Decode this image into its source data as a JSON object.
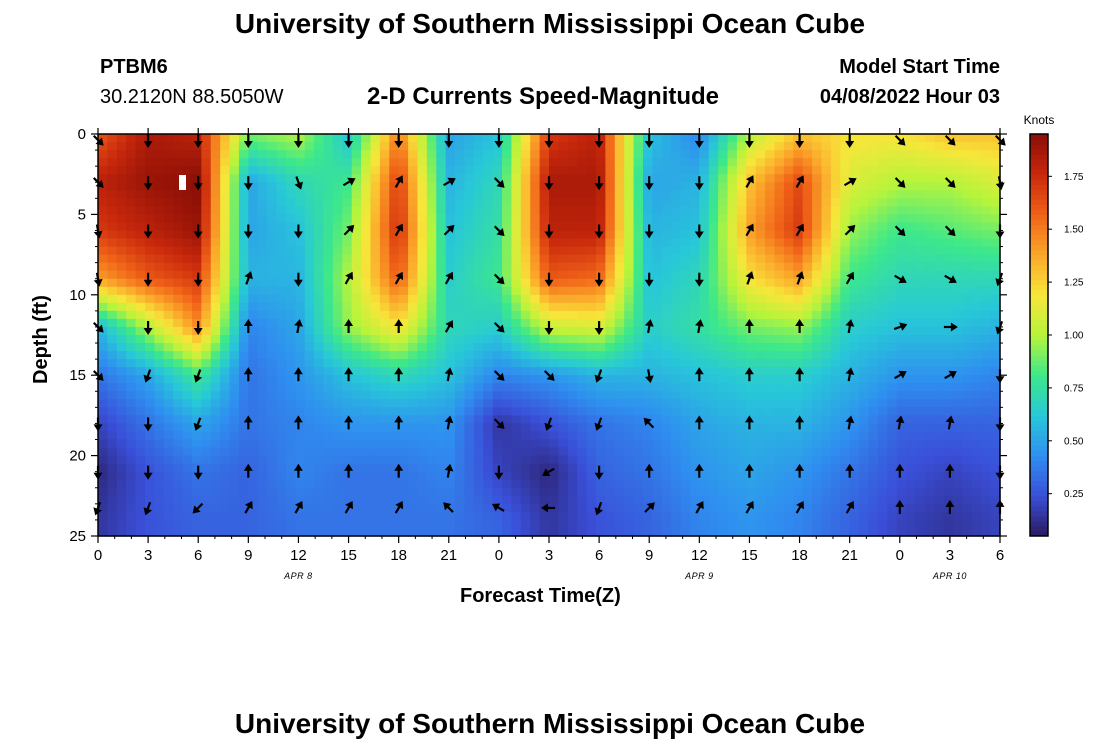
{
  "page": {
    "title_top": "University of Southern Mississippi Ocean Cube",
    "title_bottom": "University of Southern Mississippi Ocean Cube"
  },
  "header": {
    "station": "PTBM6",
    "coords": "30.2120N  88.5050W",
    "plot_title": "2-D Currents Speed-Magnitude",
    "model_label": "Model Start Time",
    "model_time": "04/08/2022 Hour 03"
  },
  "colors": {
    "scale": [
      "#2a1a5e",
      "#3a4fd8",
      "#2f8ff0",
      "#28c8d8",
      "#3de88a",
      "#b7f43b",
      "#f7e63a",
      "#fba72a",
      "#f06218",
      "#c8280c",
      "#8a0e06"
    ]
  },
  "chart_data": {
    "type": "heatmap",
    "title": "2-D Currents Speed-Magnitude",
    "xlabel": "Forecast Time(Z)",
    "ylabel": "Depth (ft)",
    "x_ticks": [
      "0",
      "3",
      "6",
      "9",
      "12",
      "15",
      "18",
      "21",
      "0",
      "3",
      "6",
      "9",
      "12",
      "15",
      "18",
      "21",
      "0",
      "3",
      "6"
    ],
    "x_range_hours": [
      0,
      54
    ],
    "y_ticks": [
      "0",
      "5",
      "10",
      "15",
      "20",
      "25"
    ],
    "y_range_ft": [
      0,
      25
    ],
    "date_labels": [
      {
        "label": "APR 8",
        "hour": 12
      },
      {
        "label": "APR 9",
        "hour": 36
      },
      {
        "label": "APR 10",
        "hour": 51
      }
    ],
    "colorbar": {
      "label": "Knots",
      "min": 0.05,
      "max": 1.95,
      "ticks": [
        "0.25",
        "0.50",
        "0.75",
        "1.00",
        "1.25",
        "1.50",
        "1.75"
      ],
      "tick_values": [
        0.25,
        0.5,
        0.75,
        1.0,
        1.25,
        1.5,
        1.75
      ]
    },
    "speed_knots": {
      "depths_ft": [
        0,
        3,
        6,
        9,
        12,
        15,
        18,
        21,
        24
      ],
      "hours": [
        0,
        3,
        6,
        9,
        12,
        15,
        18,
        21,
        24,
        27,
        30,
        33,
        36,
        39,
        42,
        45,
        48,
        51,
        54
      ],
      "rows": [
        [
          1.6,
          1.85,
          1.8,
          0.9,
          1.0,
          0.6,
          1.5,
          0.5,
          0.6,
          1.7,
          1.8,
          0.6,
          0.4,
          1.0,
          1.3,
          1.2,
          1.2,
          1.3,
          1.3
        ],
        [
          1.8,
          1.9,
          1.95,
          0.5,
          0.7,
          0.8,
          1.7,
          0.55,
          0.7,
          1.85,
          1.85,
          0.5,
          0.55,
          1.3,
          1.65,
          1.1,
          1.0,
          1.0,
          1.1
        ],
        [
          1.7,
          1.8,
          1.9,
          0.5,
          0.6,
          0.9,
          1.75,
          0.6,
          0.75,
          1.8,
          1.8,
          0.55,
          0.6,
          1.4,
          1.7,
          0.95,
          0.8,
          0.85,
          0.9
        ],
        [
          1.4,
          1.6,
          1.7,
          0.55,
          0.55,
          1.0,
          1.6,
          0.65,
          0.8,
          1.6,
          1.55,
          0.6,
          0.7,
          1.2,
          1.4,
          0.8,
          0.7,
          0.7,
          0.7
        ],
        [
          0.55,
          1.0,
          1.45,
          0.4,
          0.5,
          0.95,
          1.2,
          0.7,
          0.65,
          1.05,
          1.1,
          0.65,
          0.75,
          0.9,
          0.95,
          0.65,
          0.6,
          0.6,
          0.55
        ],
        [
          0.35,
          0.5,
          0.8,
          0.35,
          0.45,
          0.6,
          0.7,
          0.6,
          0.4,
          0.45,
          0.55,
          0.55,
          0.6,
          0.65,
          0.65,
          0.55,
          0.45,
          0.45,
          0.4
        ],
        [
          0.2,
          0.35,
          0.5,
          0.35,
          0.4,
          0.45,
          0.45,
          0.45,
          0.15,
          0.25,
          0.35,
          0.4,
          0.5,
          0.55,
          0.55,
          0.45,
          0.3,
          0.3,
          0.3
        ],
        [
          0.1,
          0.25,
          0.35,
          0.3,
          0.4,
          0.35,
          0.35,
          0.4,
          0.2,
          0.1,
          0.3,
          0.35,
          0.45,
          0.5,
          0.45,
          0.35,
          0.25,
          0.2,
          0.25
        ],
        [
          0.15,
          0.25,
          0.3,
          0.3,
          0.35,
          0.35,
          0.35,
          0.35,
          0.3,
          0.15,
          0.25,
          0.3,
          0.4,
          0.45,
          0.4,
          0.3,
          0.2,
          0.15,
          0.2
        ]
      ]
    },
    "current_direction_deg": {
      "note": "arrow bearing, degrees clockwise from north (0=up, 90=right)",
      "depths_ft": [
        0,
        3,
        6,
        9,
        12,
        15,
        18,
        21,
        24
      ],
      "hours": [
        0,
        3,
        6,
        9,
        12,
        15,
        18,
        21,
        24,
        27,
        30,
        33,
        36,
        39,
        42,
        45,
        48,
        51,
        54
      ],
      "rows": [
        [
          135,
          180,
          180,
          180,
          180,
          180,
          180,
          180,
          180,
          180,
          180,
          180,
          180,
          180,
          180,
          180,
          135,
          135,
          135
        ],
        [
          135,
          180,
          180,
          180,
          160,
          60,
          30,
          60,
          135,
          180,
          180,
          180,
          180,
          30,
          30,
          60,
          135,
          135,
          170
        ],
        [
          170,
          180,
          180,
          180,
          180,
          45,
          30,
          45,
          135,
          180,
          180,
          180,
          180,
          30,
          30,
          45,
          135,
          135,
          180
        ],
        [
          170,
          180,
          180,
          20,
          180,
          30,
          30,
          30,
          135,
          180,
          180,
          180,
          180,
          20,
          20,
          30,
          120,
          120,
          200
        ],
        [
          135,
          180,
          180,
          0,
          10,
          0,
          0,
          30,
          135,
          180,
          180,
          10,
          10,
          0,
          0,
          10,
          70,
          90,
          200
        ],
        [
          135,
          200,
          200,
          0,
          0,
          0,
          0,
          10,
          135,
          135,
          200,
          170,
          0,
          0,
          0,
          10,
          60,
          60,
          180
        ],
        [
          180,
          180,
          200,
          0,
          0,
          0,
          0,
          10,
          135,
          200,
          200,
          315,
          0,
          0,
          0,
          10,
          10,
          10,
          180
        ],
        [
          180,
          180,
          180,
          0,
          0,
          0,
          0,
          10,
          180,
          240,
          180,
          0,
          0,
          0,
          0,
          0,
          0,
          0,
          180
        ],
        [
          200,
          200,
          225,
          30,
          30,
          30,
          30,
          315,
          300,
          270,
          200,
          45,
          30,
          30,
          30,
          30,
          0,
          0,
          0
        ]
      ]
    }
  }
}
